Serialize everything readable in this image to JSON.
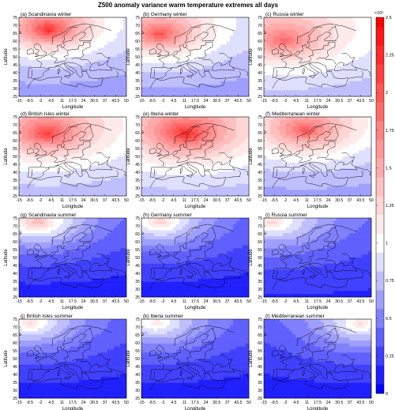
{
  "chart_data": {
    "type": "heatmap",
    "title": "Z500 anomaly variance warm temperature extremes all days",
    "xlabel": "Longitude",
    "ylabel": "Latitude",
    "x_ticks": [
      "-15",
      "-8.5",
      "-2",
      "4.5",
      "11",
      "17.5",
      "24",
      "30.5",
      "37",
      "43.5",
      "50"
    ],
    "y_ticks": [
      "25",
      "30",
      "35",
      "40",
      "45",
      "50",
      "55",
      "60",
      "65",
      "70",
      "75"
    ],
    "xlim": [
      -15,
      50
    ],
    "ylim": [
      25,
      75
    ],
    "colorbar": {
      "label": "Z500 anomaly variance (m²/s⁴)",
      "exponent": "×10⁶",
      "range": [
        0,
        2.5
      ],
      "ticks": [
        "0",
        "0.25",
        "0.5",
        "0.75",
        "1",
        "1.25",
        "1.5",
        "1.75",
        "2",
        "2.25",
        "2.5"
      ],
      "colors": [
        "#0000ff",
        "#ffffff",
        "#ff0000"
      ]
    },
    "panels": [
      {
        "id": "a",
        "label": "(a) Scandinavia winter",
        "center_level": 2.3,
        "center": [
          3,
          67
        ],
        "low": 0.6,
        "gradient": 0.038
      },
      {
        "id": "b",
        "label": "(b) Germany winter",
        "center_level": 2.1,
        "center": [
          -4,
          64
        ],
        "low": 0.6,
        "gradient": 0.034
      },
      {
        "id": "c",
        "label": "(c) Russia winter",
        "center_level": 2.0,
        "center": [
          -3,
          60
        ],
        "low": 0.7,
        "gradient": 0.03
      },
      {
        "id": "d",
        "label": "(d) British Isles winter",
        "center_level": 2.2,
        "center": [
          2,
          64
        ],
        "low": 0.7,
        "gradient": 0.032
      },
      {
        "id": "e",
        "label": "(e) Iberia winter",
        "center_level": 2.35,
        "center": [
          12,
          64
        ],
        "low": 0.7,
        "gradient": 0.03
      },
      {
        "id": "f",
        "label": "(f) Mediterranean winter",
        "center_level": 2.0,
        "center": [
          10,
          66
        ],
        "low": 0.6,
        "gradient": 0.03
      },
      {
        "id": "g",
        "label": "(g) Scandinavia summer",
        "center_level": 1.35,
        "center": [
          -4,
          72
        ],
        "low": 0.1,
        "gradient": 0.03
      },
      {
        "id": "h",
        "label": "(h) Germany summer",
        "center_level": 1.2,
        "center": [
          -4,
          72
        ],
        "low": 0.1,
        "gradient": 0.03
      },
      {
        "id": "i",
        "label": "(i) Russia summer",
        "center_level": 1.15,
        "center": [
          -10,
          72
        ],
        "low": 0.15,
        "gradient": 0.028
      },
      {
        "id": "j",
        "label": "(j) British Isles summer",
        "center_level": 1.1,
        "center": [
          -8,
          72
        ],
        "low": 0.1,
        "gradient": 0.028
      },
      {
        "id": "k",
        "label": "(k) Iberia summer",
        "center_level": 1.05,
        "center": [
          -6,
          72
        ],
        "low": 0.1,
        "gradient": 0.028
      },
      {
        "id": "l",
        "label": "(l) Mediterranean summer",
        "center_level": 1.1,
        "center": [
          44,
          72
        ],
        "low": 0.1,
        "gradient": 0.028
      }
    ]
  }
}
